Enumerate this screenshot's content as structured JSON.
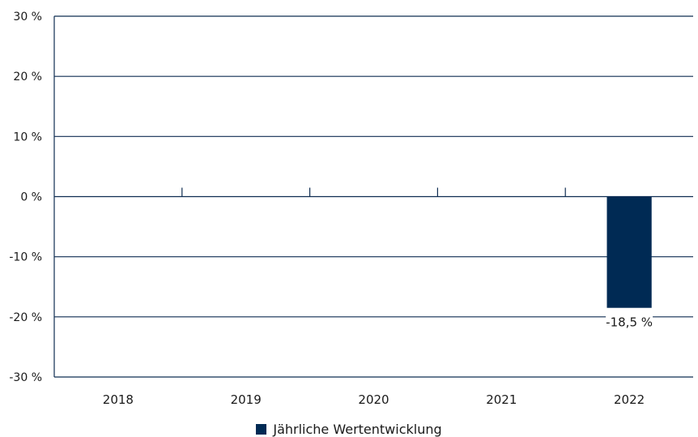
{
  "chart_data": {
    "type": "bar",
    "categories": [
      "2018",
      "2019",
      "2020",
      "2021",
      "2022"
    ],
    "series": [
      {
        "name": "Jährliche Wertentwicklung",
        "values": [
          null,
          null,
          null,
          null,
          -18.5
        ],
        "labels": [
          "",
          "",
          "",
          "",
          "-18,5 %"
        ]
      }
    ],
    "yticks": [
      30,
      20,
      10,
      0,
      -10,
      -20,
      -30
    ],
    "ytick_labels": [
      "30 %",
      "20 %",
      "10 %",
      "0 %",
      "-10 %",
      "-20 %",
      "-30 %"
    ],
    "ylim": [
      -30,
      30
    ],
    "grid": true,
    "legend_position": "bottom-center"
  },
  "colors": {
    "bar": "#002a54",
    "grid": "#0f2d52",
    "text": "#1a1a1a"
  }
}
